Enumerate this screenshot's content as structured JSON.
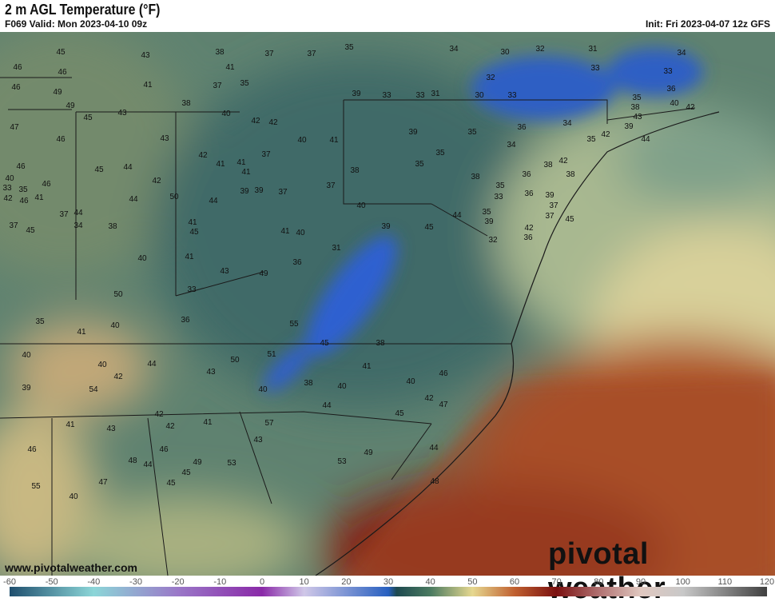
{
  "header": {
    "title": "2 m AGL Temperature (°F)",
    "valid": "F069 Valid: Mon 2023-04-10 09z",
    "init": "Init: Fri 2023-04-07 12z GFS"
  },
  "footer": {
    "website": "www.pivotalweather.com",
    "logo": "pivotal weather"
  },
  "colorbar": {
    "unit": "°F",
    "ticks": [
      "-60",
      "-50",
      "-40",
      "-30",
      "-20",
      "-10",
      "0",
      "10",
      "20",
      "30",
      "40",
      "50",
      "60",
      "70",
      "80",
      "90",
      "100",
      "110",
      "120"
    ],
    "colors": {
      "-60": "#1f4f6e",
      "-40": "#8cd6d8",
      "-20": "#9a78c8",
      "0": "#8a2aa8",
      "10": "#d0c8e8",
      "30": "#2860c0",
      "32": "#1e4a50",
      "40": "#4a7a60",
      "50": "#e6d890",
      "60": "#c06030",
      "70": "#7a1010",
      "80": "#b07070",
      "90": "#e0c8c0",
      "100": "#c8c8c8",
      "120": "#404040"
    }
  },
  "map": {
    "region": "Eastern United States",
    "station_values": [
      "45",
      "43",
      "38",
      "37",
      "37",
      "35",
      "34",
      "30",
      "32",
      "31",
      "34",
      "46",
      "46",
      "49",
      "41",
      "37",
      "41",
      "35",
      "33",
      "46",
      "49",
      "45",
      "43",
      "38",
      "40",
      "42",
      "39",
      "33",
      "33",
      "31",
      "30",
      "33",
      "32",
      "33",
      "35",
      "47",
      "43",
      "42",
      "41",
      "40",
      "38",
      "39",
      "35",
      "35",
      "35",
      "34",
      "34",
      "38",
      "36",
      "46",
      "45",
      "44",
      "37",
      "41",
      "42",
      "41",
      "38",
      "36",
      "39",
      "41",
      "36",
      "35",
      "38",
      "42",
      "39",
      "37",
      "46",
      "46",
      "42",
      "44",
      "39",
      "37",
      "37",
      "38",
      "35",
      "36",
      "43",
      "40",
      "39",
      "42",
      "44",
      "42",
      "45",
      "42",
      "33",
      "35",
      "44",
      "38",
      "39",
      "45",
      "44",
      "39",
      "40",
      "33",
      "35",
      "42",
      "37",
      "45",
      "46",
      "41",
      "40",
      "37",
      "34",
      "41",
      "50",
      "45",
      "44",
      "41",
      "40",
      "31",
      "32",
      "36",
      "41",
      "49",
      "37",
      "40",
      "50",
      "55",
      "45",
      "38",
      "36",
      "43",
      "33",
      "36",
      "35",
      "41",
      "40",
      "44",
      "50",
      "51",
      "43",
      "40",
      "38",
      "40",
      "41",
      "40",
      "46",
      "47",
      "42",
      "40",
      "39",
      "40",
      "42",
      "54",
      "42",
      "41",
      "43",
      "42",
      "41",
      "43",
      "57",
      "53",
      "49",
      "46",
      "44",
      "44",
      "45",
      "44",
      "53",
      "49",
      "48",
      "46",
      "48",
      "45",
      "47",
      "45",
      "55",
      "40"
    ]
  }
}
